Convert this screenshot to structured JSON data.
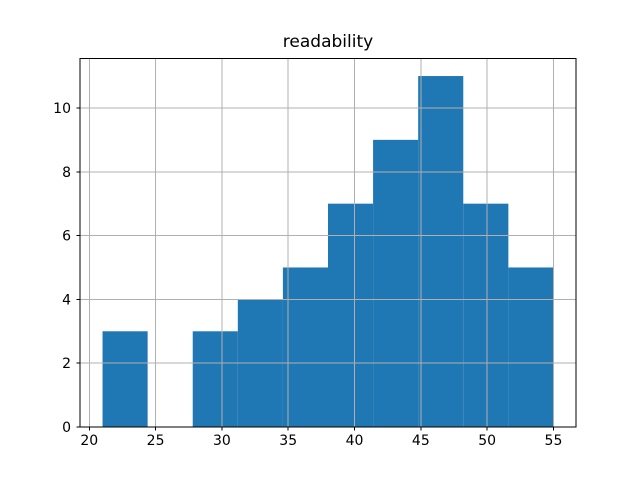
{
  "chart_data": {
    "type": "bar",
    "subtype": "histogram",
    "title": "readability",
    "xlabel": "",
    "ylabel": "",
    "bin_edges": [
      21.0,
      24.4,
      27.8,
      31.2,
      34.6,
      38.0,
      41.4,
      44.8,
      48.2,
      51.6,
      55.0
    ],
    "values": [
      3,
      0,
      3,
      4,
      5,
      7,
      9,
      11,
      7,
      5
    ],
    "xticks": [
      20,
      25,
      30,
      35,
      40,
      45,
      50,
      55
    ],
    "yticks": [
      0,
      2,
      4,
      6,
      8,
      10
    ],
    "xlim": [
      19.3,
      56.7
    ],
    "ylim": [
      0,
      11.55
    ],
    "grid": true,
    "grid_above_bars": true,
    "legend": null,
    "colors": {
      "bar": "#1f77b4",
      "grid": "#b0b0b0",
      "axis": "#000000",
      "text": "#000000",
      "background": "#ffffff"
    }
  }
}
